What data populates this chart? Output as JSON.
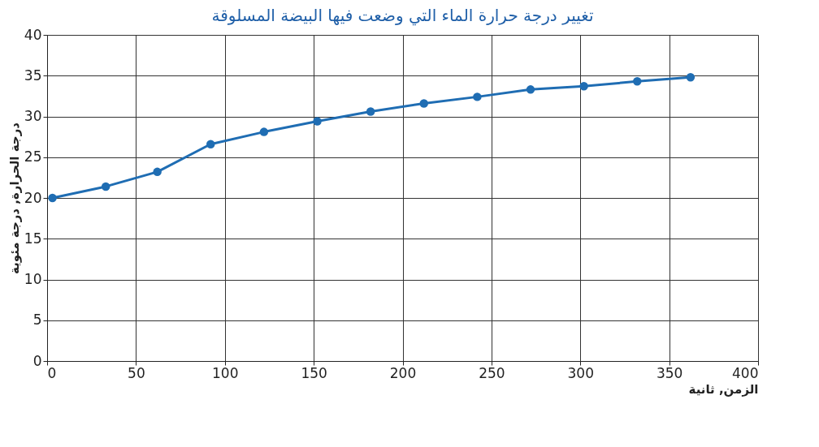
{
  "chart_data": {
    "type": "line",
    "title": "تغيير درجة حرارة الماء التي وضعت فيها البيضة المسلوقة",
    "xlabel": "الزمن, ثانية",
    "ylabel": "درجة الحرارة, درجة مئوية",
    "x": [
      3,
      33,
      62,
      92,
      122,
      152,
      182,
      212,
      242,
      272,
      302,
      332,
      362
    ],
    "series": [
      {
        "color": "#1f6db3",
        "values": [
          20.0,
          21.4,
          23.2,
          26.6,
          28.1,
          29.4,
          30.6,
          31.6,
          32.4,
          33.3,
          33.7,
          34.3,
          34.8
        ]
      }
    ],
    "xlim": [
      0,
      400
    ],
    "xticks": [
      0,
      50,
      100,
      150,
      200,
      250,
      300,
      350,
      400
    ],
    "ylim": [
      0,
      40
    ],
    "yticks": [
      0,
      5,
      10,
      15,
      20,
      25,
      30,
      35,
      40
    ],
    "grid": true,
    "legend": false,
    "marker": "circle",
    "line_style": "solid"
  }
}
